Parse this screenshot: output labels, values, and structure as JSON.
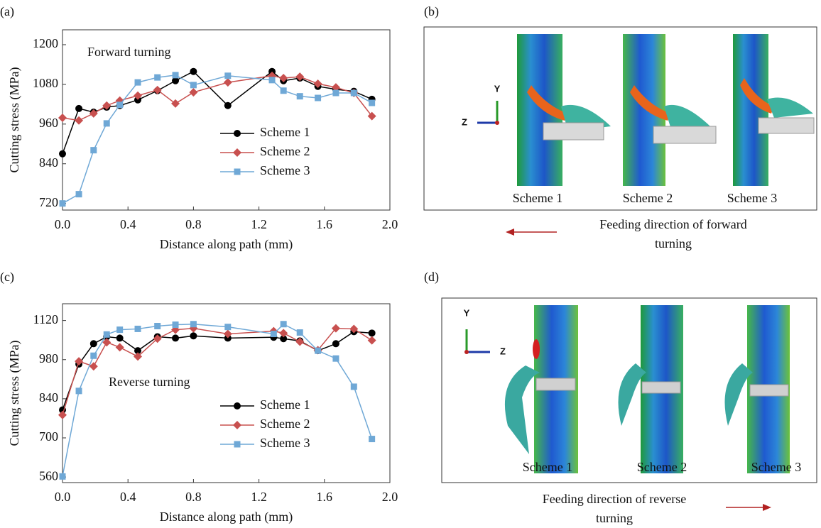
{
  "chart_data": [
    {
      "type": "line",
      "panel_label": "(a)",
      "annotation": "Forward turning",
      "x_label": "Distance along path (mm)",
      "y_label": "Cutting stress (MPa)",
      "x": [
        0,
        0.1,
        0.19,
        0.27,
        0.35,
        0.46,
        0.58,
        0.69,
        0.8,
        1.01,
        1.28,
        1.35,
        1.45,
        1.56,
        1.67,
        1.78,
        1.89
      ],
      "xlim": [
        0,
        2.0
      ],
      "xticks": [
        {
          "value": 0,
          "label": "0.0"
        },
        0.4,
        0.8,
        1.2,
        1.6,
        {
          "value": 2.0,
          "label": "2.0"
        }
      ],
      "ylim": [
        700,
        1245
      ],
      "yticks": [
        720,
        840,
        960,
        1080,
        1200
      ],
      "legend": "lower right",
      "series": [
        {
          "name": "Scheme 1",
          "color": "#000000",
          "marker": "circle",
          "values": [
            870,
            1007,
            996,
            1011,
            1016,
            1033,
            1061,
            1091,
            1119,
            1016,
            1119,
            1091,
            1099,
            1074,
            1065,
            1059,
            1035
          ]
        },
        {
          "name": "Scheme 2",
          "color": "#c8504f",
          "marker": "diamond",
          "values": [
            979,
            971,
            992,
            1016,
            1031,
            1046,
            1063,
            1022,
            1056,
            1086,
            1106,
            1099,
            1103,
            1082,
            1071,
            1054,
            984
          ]
        },
        {
          "name": "Scheme 3",
          "color": "#6fa8d6",
          "marker": "square",
          "values": [
            720,
            748,
            881,
            962,
            1018,
            1086,
            1101,
            1108,
            1078,
            1106,
            1093,
            1061,
            1044,
            1039,
            1054,
            1054,
            1024
          ]
        }
      ]
    },
    {
      "type": "line",
      "panel_label": "(c)",
      "annotation": "Reverse turning",
      "x_label": "Distance along path (mm)",
      "y_label": "Cutting stress (MPa)",
      "x": [
        0,
        0.1,
        0.19,
        0.27,
        0.35,
        0.46,
        0.58,
        0.69,
        0.8,
        1.01,
        1.29,
        1.35,
        1.45,
        1.56,
        1.67,
        1.78,
        1.89
      ],
      "xlim": [
        0,
        2.0
      ],
      "xticks": [
        {
          "value": 0,
          "label": "0.0"
        },
        0.4,
        0.8,
        1.2,
        1.6,
        {
          "value": 2.0,
          "label": "2.0"
        }
      ],
      "ylim": [
        540,
        1180
      ],
      "yticks": [
        560,
        700,
        840,
        980,
        1120
      ],
      "legend": "lower right",
      "series": [
        {
          "name": "Scheme 1",
          "color": "#000000",
          "marker": "circle",
          "values": [
            800,
            964,
            1037,
            1062,
            1057,
            1012,
            1062,
            1057,
            1065,
            1057,
            1060,
            1055,
            1047,
            1012,
            1037,
            1080,
            1075
          ]
        },
        {
          "name": "Scheme 2",
          "color": "#c8504f",
          "marker": "diamond",
          "values": [
            782,
            974,
            956,
            1042,
            1024,
            991,
            1055,
            1087,
            1092,
            1072,
            1082,
            1075,
            1044,
            1014,
            1092,
            1090,
            1049
          ]
        },
        {
          "name": "Scheme 3",
          "color": "#6fa8d6",
          "marker": "square",
          "values": [
            562,
            868,
            994,
            1070,
            1087,
            1090,
            1100,
            1105,
            1107,
            1097,
            1072,
            1107,
            1077,
            1012,
            984,
            883,
            696
          ]
        }
      ]
    }
  ],
  "panels": [
    {
      "label": "(b)",
      "axis_labels": [
        "Y",
        "Z"
      ],
      "scheme_labels": [
        "Scheme 1",
        "Scheme 2",
        "Scheme 3"
      ],
      "caption_lines": [
        "Feeding direction of forward",
        "turning"
      ]
    },
    {
      "label": "(d)",
      "axis_labels": [
        "Y",
        "Z"
      ],
      "scheme_labels": [
        "Scheme 1",
        "Scheme 2",
        "Scheme 3"
      ],
      "caption_lines": [
        "Feeding direction of reverse",
        "turning"
      ]
    }
  ]
}
